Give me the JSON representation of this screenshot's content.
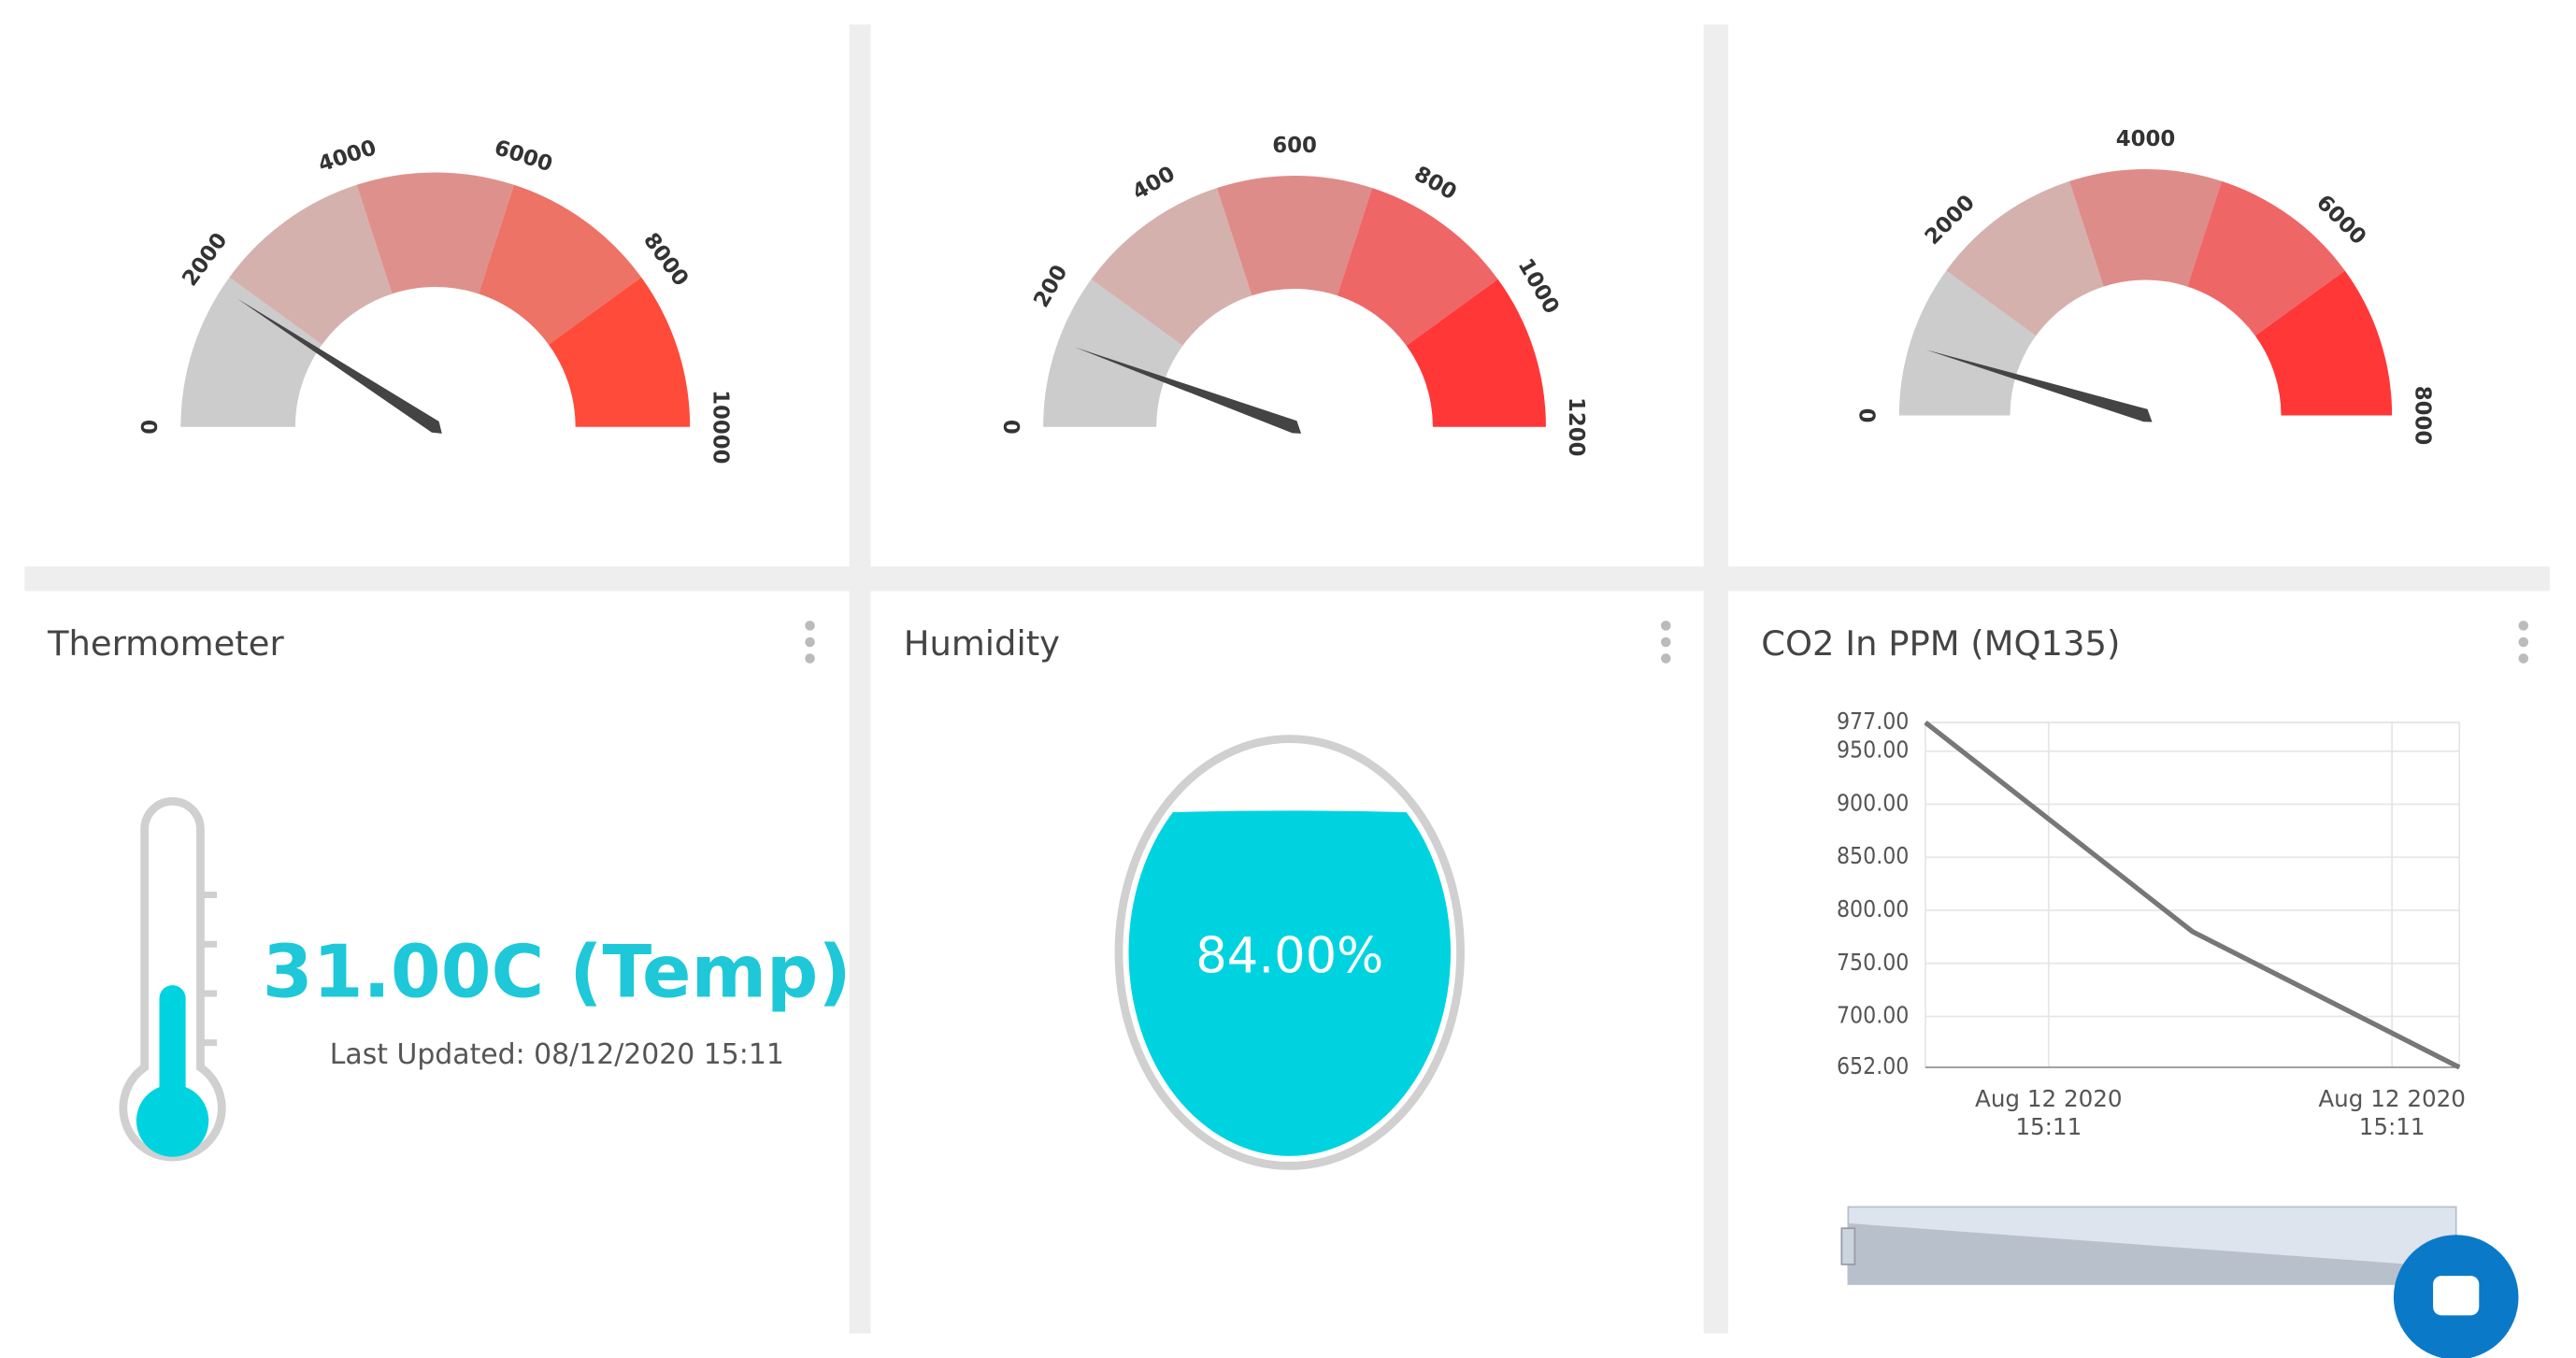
{
  "gauges": [
    {
      "range": [
        0,
        10000
      ],
      "ticks": [
        0,
        2000,
        4000,
        6000,
        8000,
        10000
      ],
      "bands": [
        2000,
        4000,
        6000,
        8000,
        10000
      ],
      "band_colors": [
        "#cccccc",
        "#d5b1ae",
        "#de918c",
        "#ec7366",
        "#ff4b3a"
      ],
      "value": 1830
    },
    {
      "range": [
        0,
        1200
      ],
      "ticks": [
        0,
        200,
        400,
        600,
        800,
        1000,
        1200
      ],
      "bands": [
        240,
        480,
        720,
        960,
        1200
      ],
      "band_colors": [
        "#cccccc",
        "#d5b1ae",
        "#de8c89",
        "#ef6666",
        "#ff3737"
      ],
      "value": 133
    },
    {
      "range": [
        0,
        8000
      ],
      "ticks": [
        0,
        2000,
        4000,
        6000,
        8000
      ],
      "bands": [
        1600,
        3200,
        4800,
        6400,
        8000
      ],
      "band_colors": [
        "#cccccc",
        "#d5b1ae",
        "#de8c89",
        "#ef6666",
        "#ff3737"
      ],
      "value": 740
    }
  ],
  "thermometer": {
    "title": "Thermometer",
    "value_label": "31.00C (Temp)",
    "updated": "Last Updated: 08/12/2020 15:11"
  },
  "humidity": {
    "title": "Humidity",
    "value": 84,
    "value_label": "84.00%"
  },
  "co2": {
    "title": "CO2 In PPM (MQ135)",
    "type": "line",
    "values": [
      977,
      780,
      652
    ],
    "color": "#777777",
    "ylim": [
      652,
      977
    ],
    "yticks": [
      {
        "value": 977,
        "label": "977.00"
      },
      {
        "value": 950,
        "label": "950.00"
      },
      {
        "value": 900,
        "label": "900.00"
      },
      {
        "value": 850,
        "label": "850.00"
      },
      {
        "value": 800,
        "label": "800.00"
      },
      {
        "value": 750,
        "label": "750.00"
      },
      {
        "value": 700,
        "label": "700.00"
      },
      {
        "value": 652,
        "label": "652.00"
      }
    ],
    "x_labels": [
      [
        "Aug 12 2020",
        "15:11"
      ],
      [
        "Aug 12 2020",
        "15:11"
      ]
    ]
  }
}
